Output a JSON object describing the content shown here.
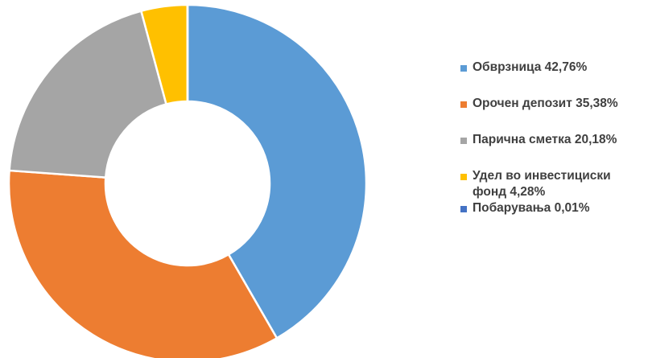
{
  "chart_data": {
    "type": "pie",
    "variant": "donut",
    "title": "",
    "legend_position": "right",
    "slices": [
      {
        "label": "Обврзница 42,76%",
        "name": "Обврзница",
        "value": 42.76,
        "color": "#5B9BD5"
      },
      {
        "label": "Орочен депозит 35,38%",
        "name": "Орочен депозит",
        "value": 35.38,
        "color": "#ED7D31"
      },
      {
        "label": "Парична сметка 20,18%",
        "name": "Парична сметка",
        "value": 20.18,
        "color": "#A5A5A5"
      },
      {
        "label": "Удел во инвестициски фонд 4,28%",
        "name": "Удел во инвестициски фонд",
        "value": 4.28,
        "color": "#FFC000"
      },
      {
        "label": "Побарувања 0,01%",
        "name": "Побарувања",
        "value": 0.01,
        "color": "#4472C4"
      }
    ]
  }
}
